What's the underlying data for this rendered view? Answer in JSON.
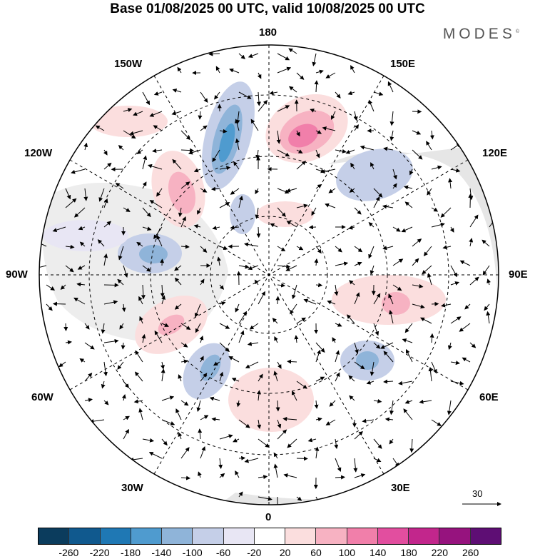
{
  "title": "Base 01/08/2025 00 UTC, valid 10/08/2025 00 UTC",
  "brand": "MODES",
  "brand_mark": "©",
  "longitude_labels": {
    "top": "180",
    "bottom": "0",
    "left": "90W",
    "right": "90E",
    "upper_left": "150W",
    "upper_right": "150E",
    "mid_upper_left": "120W",
    "mid_upper_right": "120E",
    "mid_lower_left": "60W",
    "mid_lower_right": "60E",
    "lower_left": "30W",
    "lower_right": "30E"
  },
  "reference_vector": "30",
  "colorbar": {
    "colors": [
      "#0b3c5d",
      "#10598e",
      "#1f78b4",
      "#4f9bcf",
      "#8fb4d9",
      "#c5cfe8",
      "#e8e6f4",
      "#ffffff",
      "#fbdede",
      "#f7b2c2",
      "#f17faa",
      "#e24e9f",
      "#c2268c",
      "#96137e",
      "#5e0e74"
    ],
    "tick_labels": [
      "-260",
      "-220",
      "-180",
      "-140",
      "-100",
      "-60",
      "-20",
      "20",
      "60",
      "100",
      "140",
      "180",
      "220",
      "260"
    ]
  }
}
